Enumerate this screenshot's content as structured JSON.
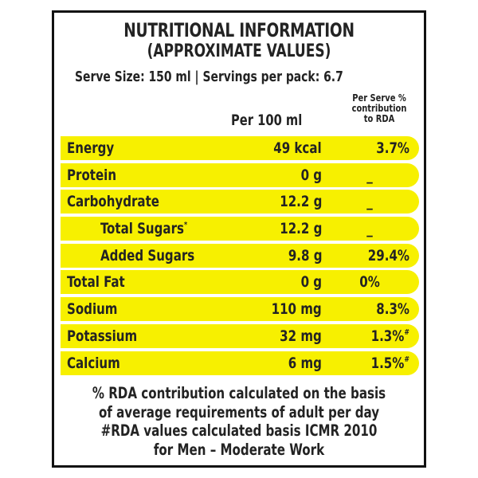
{
  "label": {
    "title": "NUTRITIONAL INFORMATION",
    "subtitle": "(APPROXIMATE VALUES)",
    "serve_info": "Serve Size: 150 ml | Servings per pack: 6.7",
    "columns": {
      "per_100ml": "Per 100 ml",
      "rda_line1": "Per Serve %",
      "rda_line2": "contribution",
      "rda_line3": "to RDA"
    },
    "rows": [
      {
        "name": "Energy",
        "amount": "49 kcal",
        "rda": "3.7%",
        "rda_mark": "",
        "name_mark": "",
        "indent": false
      },
      {
        "name": "Protein",
        "amount": "0 g",
        "rda": "_",
        "rda_mark": "",
        "name_mark": "",
        "indent": false
      },
      {
        "name": "Carbohydrate",
        "amount": "12.2 g",
        "rda": "_",
        "rda_mark": "",
        "name_mark": "",
        "indent": false
      },
      {
        "name": "Total Sugars",
        "amount": "12.2 g",
        "rda": "_",
        "rda_mark": "",
        "name_mark": "*",
        "indent": true
      },
      {
        "name": "Added Sugars",
        "amount": "9.8 g",
        "rda": "29.4%",
        "rda_mark": "",
        "name_mark": "",
        "indent": true
      },
      {
        "name": "Total Fat",
        "amount": "0 g",
        "rda": "0%",
        "rda_mark": "",
        "name_mark": "",
        "indent": false
      },
      {
        "name": "Sodium",
        "amount": "110 mg",
        "rda": "8.3%",
        "rda_mark": "",
        "name_mark": "",
        "indent": false
      },
      {
        "name": "Potassium",
        "amount": "32 mg",
        "rda": "1.3%",
        "rda_mark": "#",
        "name_mark": "",
        "indent": false
      },
      {
        "name": "Calcium",
        "amount": "6 mg",
        "rda": "1.5%",
        "rda_mark": "#",
        "name_mark": "",
        "indent": false
      }
    ],
    "footer": [
      "% RDA contribution calculated on the basis",
      "of average requirements of adult per day",
      "#RDA values calculated basis ICMR 2010",
      "for Men – Moderate  Work"
    ]
  },
  "colors": {
    "row_fill": "#f7f000",
    "text": "#232323",
    "border": "#111111"
  }
}
